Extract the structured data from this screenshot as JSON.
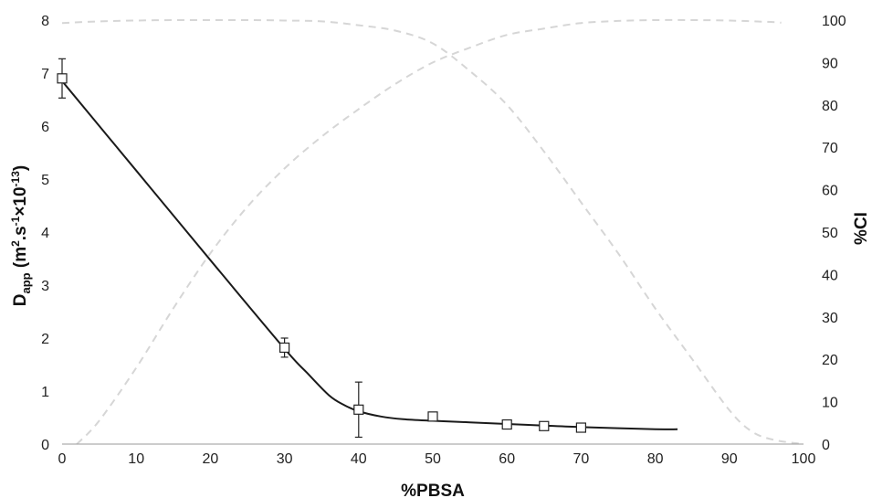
{
  "chart_data": {
    "type": "scatter",
    "xlabel": "%PBSA",
    "ylabel_left": {
      "main": "D",
      "sub": "app",
      "rest1": " (m",
      "sup1": "2",
      "rest2": ".s",
      "sup2": "-1",
      "rest3": "×10",
      "sup3": "-13",
      "rest4": ")"
    },
    "ylabel_right": "%CI",
    "xlim": [
      0,
      100
    ],
    "ylim_left": [
      0,
      8
    ],
    "ylim_right": [
      0,
      100
    ],
    "x_ticks": [
      "0",
      "10",
      "20",
      "30",
      "40",
      "50",
      "60",
      "70",
      "80",
      "90",
      "100"
    ],
    "y_left_ticks": [
      "0",
      "1",
      "2",
      "3",
      "4",
      "5",
      "6",
      "7",
      "8"
    ],
    "y_right_ticks": [
      "0",
      "10",
      "20",
      "30",
      "40",
      "50",
      "60",
      "70",
      "80",
      "90",
      "100"
    ],
    "series": [
      {
        "axis": "left",
        "marker": "open-square",
        "color": "#222222",
        "points": [
          {
            "x": 0,
            "y": 6.9,
            "err": 0.37
          },
          {
            "x": 30,
            "y": 1.82,
            "err": 0.18
          },
          {
            "x": 40,
            "y": 0.65,
            "err": 0.52
          },
          {
            "x": 50,
            "y": 0.52,
            "err": 0.07
          },
          {
            "x": 60,
            "y": 0.37,
            "err": 0.05
          },
          {
            "x": 65,
            "y": 0.34,
            "err": 0.04
          },
          {
            "x": 70,
            "y": 0.31,
            "err": 0.04
          }
        ]
      },
      {
        "axis": "left",
        "style": "solid-line",
        "color": "#1a1a1a",
        "points": [
          [
            0,
            6.85
          ],
          [
            10,
            5.16
          ],
          [
            20,
            3.47
          ],
          [
            30,
            1.8
          ],
          [
            33,
            1.35
          ],
          [
            36,
            0.92
          ],
          [
            38,
            0.74
          ],
          [
            40,
            0.62
          ],
          [
            43,
            0.52
          ],
          [
            46,
            0.47
          ],
          [
            50,
            0.44
          ],
          [
            55,
            0.41
          ],
          [
            60,
            0.38
          ],
          [
            65,
            0.35
          ],
          [
            70,
            0.32
          ],
          [
            75,
            0.3
          ],
          [
            80,
            0.28
          ],
          [
            83,
            0.28
          ]
        ]
      },
      {
        "axis": "right",
        "style": "dashed-line",
        "color": "#d6d6d6",
        "points": [
          [
            0,
            99.3
          ],
          [
            5,
            99.7
          ],
          [
            10,
            99.9
          ],
          [
            15,
            100
          ],
          [
            20,
            100
          ],
          [
            25,
            100
          ],
          [
            30,
            99.9
          ],
          [
            35,
            99.7
          ],
          [
            40,
            98.8
          ],
          [
            45,
            97.5
          ],
          [
            50,
            94.5
          ],
          [
            55,
            88
          ],
          [
            60,
            80
          ],
          [
            65,
            69
          ],
          [
            70,
            57
          ],
          [
            75,
            45
          ],
          [
            80,
            32
          ],
          [
            85,
            20
          ],
          [
            90,
            8
          ],
          [
            93,
            3
          ],
          [
            96,
            1
          ],
          [
            100,
            0
          ]
        ]
      },
      {
        "axis": "right",
        "style": "dashed-line",
        "color": "#d6d6d6",
        "points": [
          [
            2,
            0
          ],
          [
            5,
            5.5
          ],
          [
            10,
            18
          ],
          [
            15,
            32
          ],
          [
            20,
            45
          ],
          [
            25,
            56
          ],
          [
            30,
            65
          ],
          [
            35,
            72.5
          ],
          [
            40,
            79
          ],
          [
            45,
            85
          ],
          [
            50,
            90
          ],
          [
            55,
            93.5
          ],
          [
            60,
            96.5
          ],
          [
            65,
            98
          ],
          [
            70,
            99.3
          ],
          [
            75,
            99.8
          ],
          [
            80,
            100
          ],
          [
            85,
            100
          ],
          [
            90,
            99.9
          ],
          [
            95,
            99.6
          ],
          [
            97,
            99.4
          ]
        ]
      }
    ]
  }
}
